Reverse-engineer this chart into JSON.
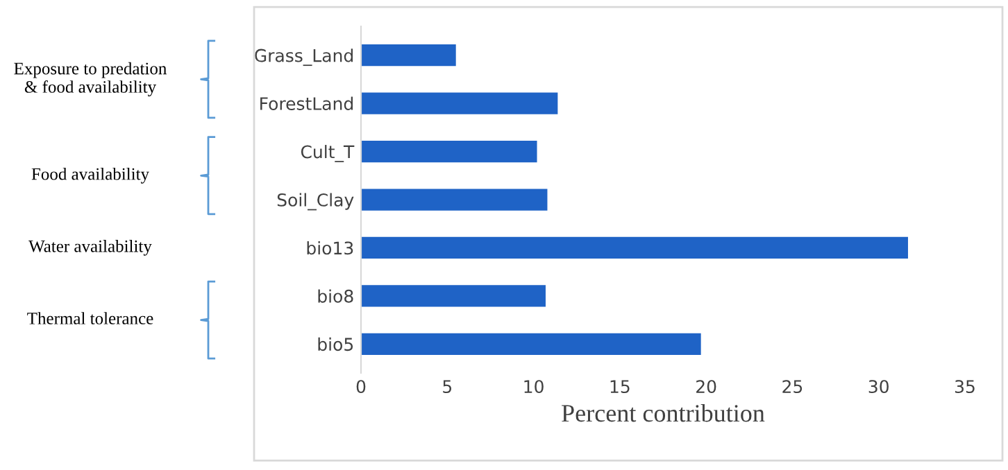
{
  "chart_data": {
    "type": "bar",
    "orientation": "horizontal",
    "xlabel": "Percent contribution",
    "categories": [
      "Grass_Land",
      "ForestLand",
      "Cult_T",
      "Soil_Clay",
      "bio13",
      "bio8",
      "bio5"
    ],
    "values": [
      5.5,
      11.4,
      10.2,
      10.8,
      31.7,
      10.7,
      19.7
    ],
    "color": "#1f63c6",
    "xlim": [
      0,
      35
    ],
    "xticks": [
      0,
      5,
      10,
      15,
      20,
      25,
      30,
      35
    ],
    "grid": false,
    "legend": false,
    "annotations": [
      "Exposure to predation\n& food availability",
      "Food availability",
      "Water availability",
      "Thermal tolerance"
    ]
  }
}
